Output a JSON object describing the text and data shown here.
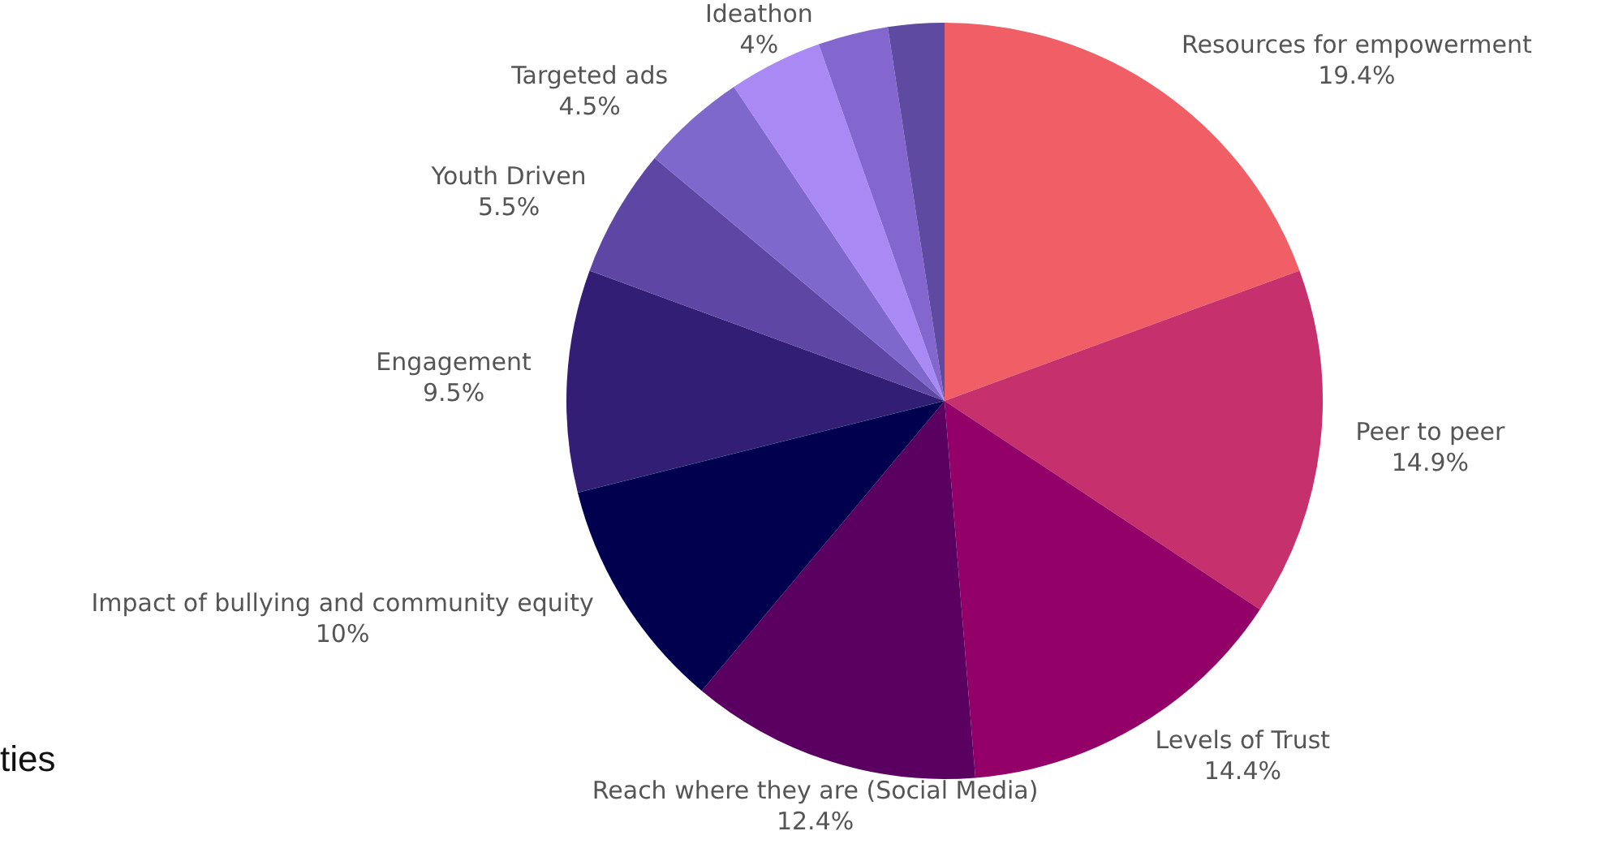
{
  "chart_data": {
    "type": "pie",
    "categories": [
      "Resources for empowerment",
      "Peer to peer",
      "Levels of Trust",
      "Reach where they are (Social Media)",
      "Impact of bullying and community equity",
      "Engagement",
      "Youth Driven",
      "Targeted ads",
      "Ideathon",
      null,
      null
    ],
    "values": [
      19.4,
      14.9,
      14.4,
      12.4,
      10,
      9.5,
      5.5,
      4.5,
      4,
      3.0,
      2.4
    ],
    "value_labels": [
      "19.4%",
      "14.9%",
      "14.4%",
      "12.4%",
      "10%",
      "9.5%",
      "5.5%",
      "4.5%",
      "4%",
      null,
      null
    ],
    "colors": [
      "#f05f65",
      "#c6306c",
      "#930068",
      "#5a0060",
      "#00004f",
      "#321e74",
      "#5e46a5",
      "#7f68cc",
      "#a98af5",
      "#8466cf",
      "#5e4aa0"
    ],
    "legend": false,
    "annotations": [
      "ties"
    ]
  }
}
